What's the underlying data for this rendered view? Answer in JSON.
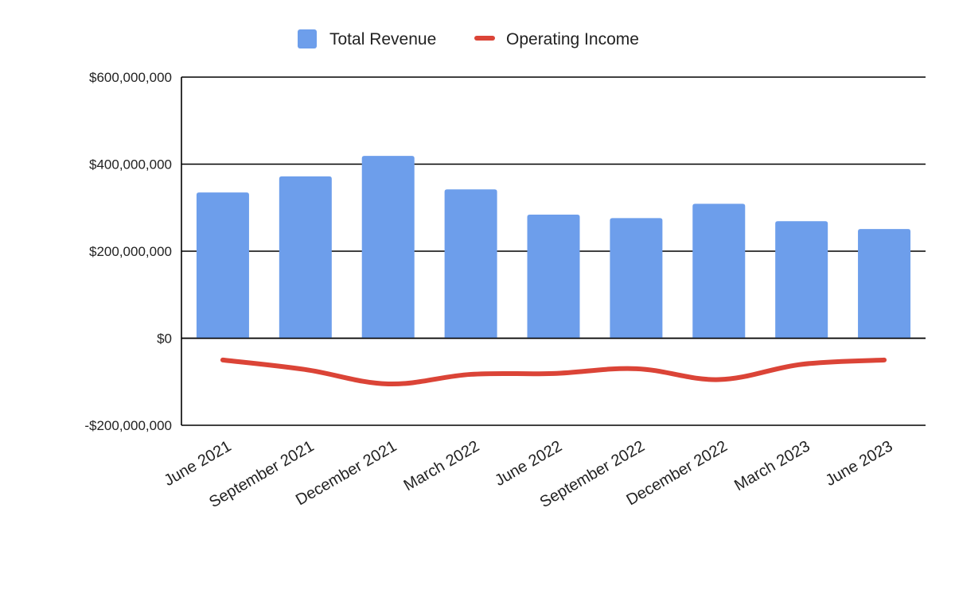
{
  "chart_data": {
    "type": "bar",
    "title": "",
    "xlabel": "",
    "ylabel": "",
    "ylim": [
      -200000000,
      600000000
    ],
    "y_ticks": [
      -200000000,
      0,
      200000000,
      400000000,
      600000000
    ],
    "y_tick_labels": [
      "-$200,000,000",
      "$0",
      "$200,000,000",
      "$400,000,000",
      "$600,000,000"
    ],
    "grid": "horizontal",
    "legend_position": "top",
    "categories": [
      "June 2021",
      "September 2021",
      "December 2021",
      "March 2022",
      "June 2022",
      "September 2022",
      "December 2022",
      "March 2023",
      "June 2023"
    ],
    "series": [
      {
        "name": "Total Revenue",
        "type": "bar",
        "color": "#6d9eeb",
        "values": [
          335000000,
          372000000,
          419000000,
          342000000,
          284000000,
          276000000,
          309000000,
          269000000,
          251000000
        ]
      },
      {
        "name": "Operating Income",
        "type": "line",
        "color": "#db4437",
        "values": [
          -50000000,
          -72000000,
          -105000000,
          -83000000,
          -81000000,
          -70000000,
          -95000000,
          -60000000,
          -50000000
        ]
      }
    ]
  }
}
